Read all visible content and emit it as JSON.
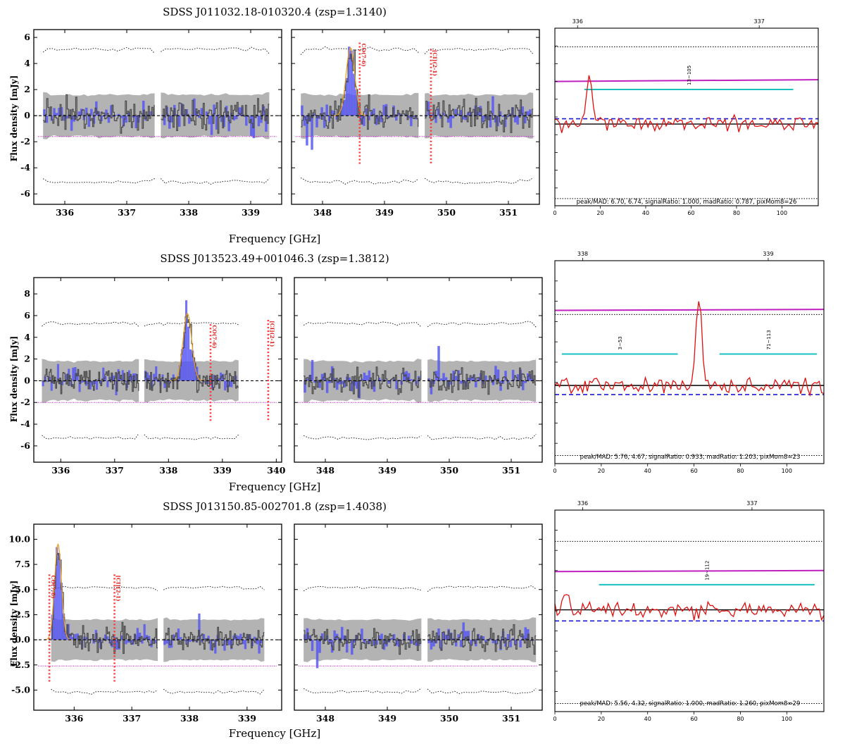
{
  "chart_data": [
    {
      "type": "spectrum",
      "title": "SDSS J011032.18-010320.4 (zsp=1.3140)",
      "xlabel": "Frequency [GHz]",
      "ylabel": "Flux density [mJy]",
      "ylim": [
        -6.8,
        6.6
      ],
      "yticks": [
        "-6",
        "-4",
        "-2",
        "0",
        "2",
        "4",
        "6"
      ],
      "yticks_values": [
        -6,
        -4,
        -2,
        0,
        2,
        4,
        6
      ],
      "rms_band": 1.6,
      "dotted_envelope": 5.1,
      "threshold": -1.6,
      "lsb": {
        "xlim": [
          335.5,
          339.5
        ],
        "xticks": [
          "336",
          "337",
          "338",
          "339"
        ],
        "xticks_values": [
          336,
          337,
          338,
          339
        ],
        "gap": [
          337.45,
          337.55
        ],
        "range": [
          335.65,
          339.3
        ]
      },
      "usb": {
        "xlim": [
          347.5,
          351.5
        ],
        "xticks": [
          "348",
          "349",
          "350",
          "351"
        ],
        "xticks_values": [
          348,
          349,
          350,
          351
        ],
        "gap": [
          349.55,
          349.65
        ],
        "range": [
          347.65,
          351.4
        ]
      },
      "lines": [
        {
          "name": "CO(7-6)",
          "freq": 348.6,
          "side": "usb",
          "y_low": -3.8,
          "y_high": 5.6
        },
        {
          "name": "[CI](2-1)",
          "freq": 349.75,
          "side": "usb",
          "y_low": -3.8,
          "y_high": 5.1
        }
      ],
      "fit": {
        "side": "usb",
        "center": 348.45,
        "peak": 5.2,
        "sigma": 0.07
      },
      "right_panel": {
        "top_ticks": [
          "336",
          "337"
        ],
        "bottom_ticks": [
          "0",
          "20",
          "40",
          "60",
          "80",
          "100"
        ],
        "bottom_ticks_values": [
          0,
          20,
          40,
          60,
          80,
          100
        ],
        "top_ticks_pos": [
          10,
          90
        ],
        "xmax": 116,
        "peak_channel": 15,
        "peak_height": 0.76,
        "ranges": [
          {
            "label": "13~105",
            "from": 13,
            "to": 105
          }
        ],
        "magenta": [
          0.7,
          0.71
        ],
        "cyan_y": 0.655,
        "blue_dashed": 0.49,
        "black_line": 0.46,
        "dotted_top": 0.895,
        "dotted_bottom": 0.04,
        "stats": "peak/MAD: 6.70, 6.74, signalRatio: 1.000, madRatio: 0.787, pixMom8=26"
      }
    },
    {
      "type": "spectrum",
      "title": "SDSS J013523.49+001046.3 (zsp=1.3812)",
      "xlabel": "Frequency [GHz]",
      "ylabel": "Flux density [mJy]",
      "ylim": [
        -7.5,
        9.5
      ],
      "yticks": [
        "-6",
        "-4",
        "-2",
        "0",
        "2",
        "4",
        "6",
        "8"
      ],
      "yticks_values": [
        -6,
        -4,
        -2,
        0,
        2,
        4,
        6,
        8
      ],
      "rms_band": 1.8,
      "dotted_envelope": 5.3,
      "threshold": -2.0,
      "lsb": {
        "xlim": [
          335.5,
          340.1
        ],
        "xticks": [
          "336",
          "337",
          "338",
          "339",
          "340"
        ],
        "xticks_values": [
          336,
          337,
          338,
          339,
          340
        ],
        "gap": [
          337.45,
          337.55
        ],
        "range": [
          335.65,
          339.3
        ]
      },
      "usb": {
        "xlim": [
          347.5,
          351.5
        ],
        "xticks": [
          "348",
          "349",
          "350",
          "351"
        ],
        "xticks_values": [
          348,
          349,
          350,
          351
        ],
        "gap": [
          349.55,
          349.65
        ],
        "range": [
          347.65,
          351.4
        ]
      },
      "lines": [
        {
          "name": "CO(7-6)",
          "freq": 338.78,
          "side": "lsb",
          "y_low": -3.8,
          "y_high": 5.2
        },
        {
          "name": "[CI](2-1)",
          "freq": 339.85,
          "side": "lsb",
          "y_low": -3.8,
          "y_high": 5.6
        }
      ],
      "fit": {
        "side": "lsb",
        "center": 338.35,
        "peak": 6.2,
        "sigma": 0.08
      },
      "right_panel": {
        "top_ticks": [
          "338",
          "339"
        ],
        "bottom_ticks": [
          "0",
          "20",
          "40",
          "60",
          "80",
          "100"
        ],
        "bottom_ticks_values": [
          0,
          20,
          40,
          60,
          80,
          100
        ],
        "top_ticks_pos": [
          12,
          92
        ],
        "xmax": 116,
        "peak_channel": 62,
        "peak_height": 0.82,
        "ranges": [
          {
            "label": "3~53",
            "from": 3,
            "to": 53
          },
          {
            "label": "71~113",
            "from": 71,
            "to": 113
          }
        ],
        "magenta": [
          0.755,
          0.76
        ],
        "cyan_y": 0.54,
        "blue_dashed": 0.34,
        "black_line": 0.385,
        "dotted_top": 0.735,
        "dotted_bottom": 0.04,
        "stats": "peak/MAD: 5.76, 4.67, signalRatio: 0.933, madRatio: 1.203, pixMom8=23"
      }
    },
    {
      "type": "spectrum",
      "title": "SDSS J013150.85-002701.8 (zsp=1.4038)",
      "xlabel": "Frequency [GHz]",
      "ylabel": "Flux density [mJy]",
      "ylim": [
        -7.0,
        11.5
      ],
      "yticks": [
        "-5.0",
        "-2.5",
        "0.0",
        "2.5",
        "5.0",
        "7.5",
        "10.0"
      ],
      "yticks_values": [
        -5,
        -2.5,
        0,
        2.5,
        5,
        7.5,
        10
      ],
      "rms_band": 2.0,
      "dotted_envelope": 5.2,
      "threshold": -2.6,
      "lsb": {
        "xlim": [
          335.3,
          339.6
        ],
        "xticks": [
          "336",
          "337",
          "338",
          "339"
        ],
        "xticks_values": [
          336,
          337,
          338,
          339
        ],
        "gap": [
          337.45,
          337.55
        ],
        "range": [
          335.6,
          339.3
        ]
      },
      "usb": {
        "xlim": [
          347.5,
          351.5
        ],
        "xticks": [
          "348",
          "349",
          "350",
          "351"
        ],
        "xticks_values": [
          348,
          349,
          350,
          351
        ],
        "gap": [
          349.55,
          349.65
        ],
        "range": [
          347.65,
          351.4
        ]
      },
      "lines": [
        {
          "name": "CO(7-6)",
          "freq": 335.57,
          "side": "lsb",
          "y_low": -4.2,
          "y_high": 6.5
        },
        {
          "name": "[CI](2-1)",
          "freq": 336.7,
          "side": "lsb",
          "y_low": -4.2,
          "y_high": 6.5
        }
      ],
      "fit": {
        "side": "lsb",
        "center": 335.72,
        "peak": 9.5,
        "sigma": 0.06
      },
      "right_panel": {
        "top_ticks": [
          "336",
          "337"
        ],
        "bottom_ticks": [
          "0",
          "20",
          "40",
          "60",
          "80",
          "100"
        ],
        "bottom_ticks_values": [
          0,
          20,
          40,
          60,
          80,
          100
        ],
        "top_ticks_pos": [
          12,
          85
        ],
        "xmax": 116,
        "peak_channel": 5,
        "peak_height": 0.615,
        "ranges": [
          {
            "label": "19~112",
            "from": 19,
            "to": 112
          }
        ],
        "magenta": [
          0.695,
          0.7
        ],
        "cyan_y": 0.63,
        "blue_dashed": 0.45,
        "black_line": 0.505,
        "dotted_top": 0.845,
        "dotted_bottom": 0.04,
        "stats": "peak/MAD: 5.56, 4.32, signalRatio: 1.000, madRatio: 1.260, pixMom8=29"
      }
    }
  ]
}
